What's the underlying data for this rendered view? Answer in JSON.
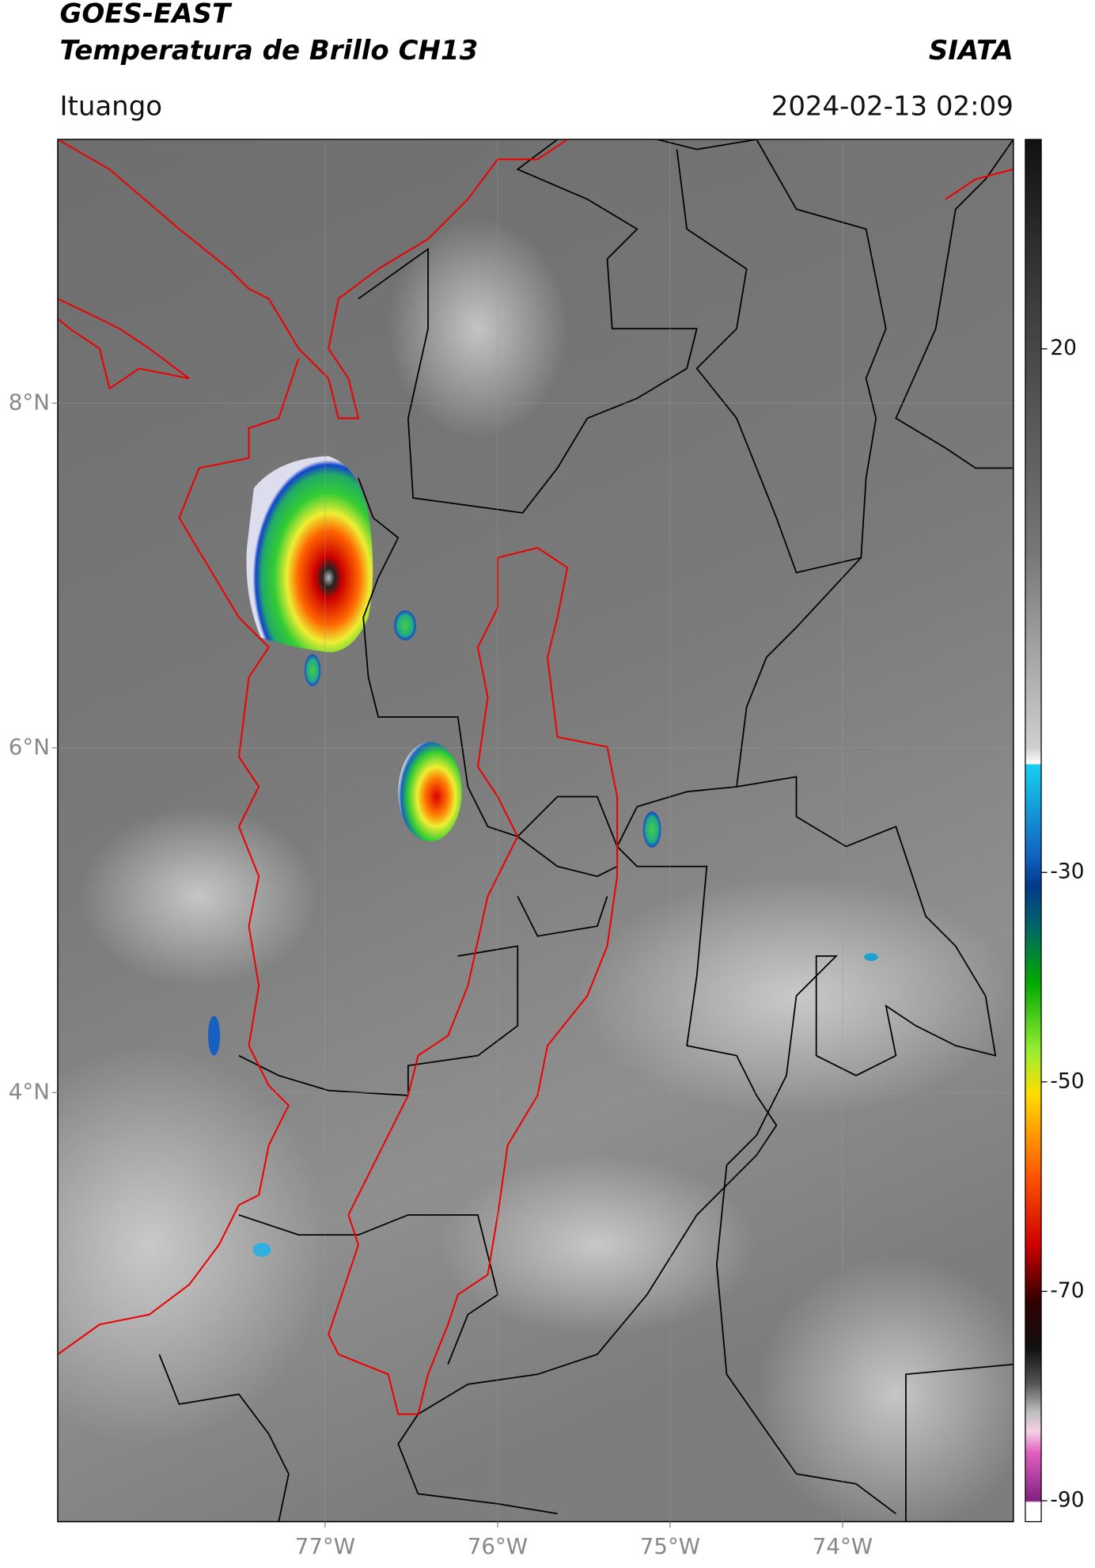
{
  "header": {
    "title": "GOES-EAST",
    "subtitle": "Temperatura de Brillo CH13",
    "agency": "SIATA",
    "location": "Ituango",
    "datetime": "2024-02-13 02:09"
  },
  "map": {
    "lonlim": [
      -78.55,
      -73.01
    ],
    "latlim": [
      1.51,
      9.53
    ],
    "lat_ticks": [
      {
        "value": 8,
        "label": "8°N"
      },
      {
        "value": 6,
        "label": "6°N"
      },
      {
        "value": 4,
        "label": "4°N"
      }
    ],
    "lon_ticks": [
      {
        "value": -77,
        "label": "77°W"
      },
      {
        "value": -76,
        "label": "76°W"
      },
      {
        "value": -75,
        "label": "75°W"
      },
      {
        "value": -74,
        "label": "74°W"
      }
    ]
  },
  "colorbar": {
    "clim": [
      -92,
      40
    ],
    "ticks": [
      20,
      -30,
      -50,
      -70,
      -90
    ]
  }
}
